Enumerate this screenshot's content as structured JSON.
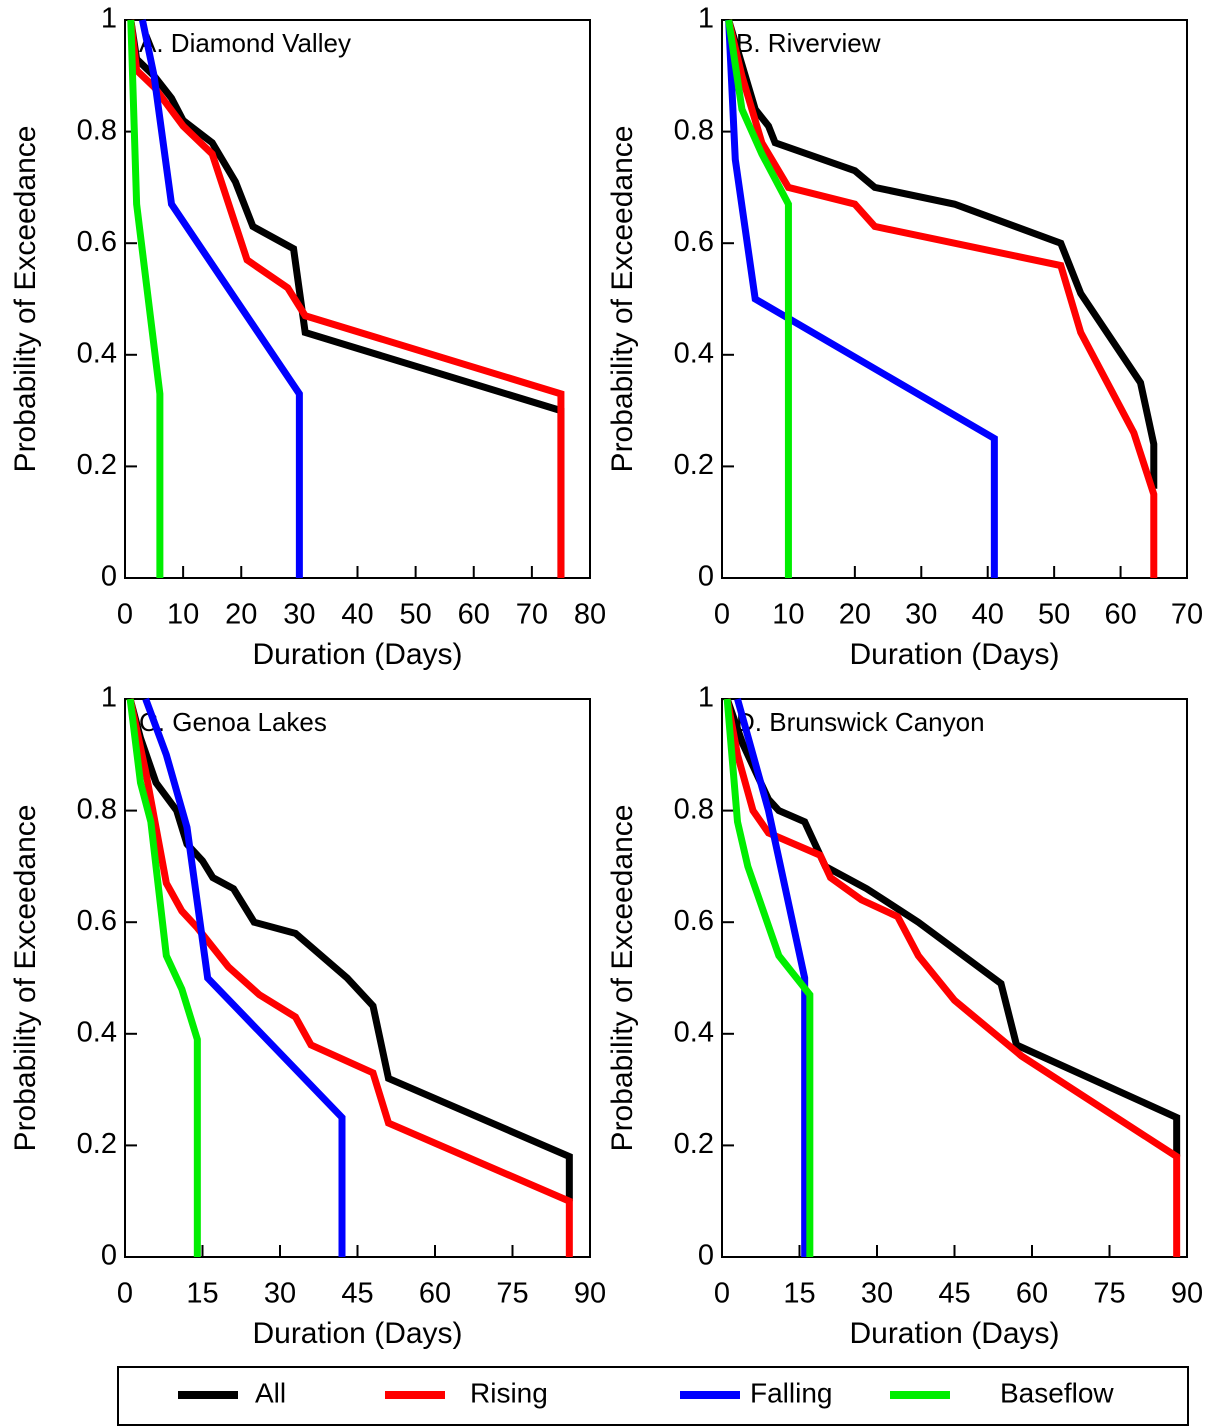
{
  "chart_data": [
    {
      "type": "line",
      "title": "A. Diamond Valley",
      "x_label": "Duration (Days)",
      "y_label": "Probability of Exceedance",
      "xlim": [
        0,
        80
      ],
      "xticks": [
        0,
        10,
        20,
        30,
        40,
        50,
        60,
        70,
        80
      ],
      "ylim": [
        0,
        1
      ],
      "yticks": [
        0,
        0.2,
        0.4,
        0.6,
        0.8,
        1
      ],
      "series": [
        {
          "name": "All",
          "color": "#000000",
          "x": [
            1,
            2,
            5,
            8,
            10,
            15,
            19,
            22,
            29,
            31,
            75,
            75
          ],
          "values": [
            1,
            0.93,
            0.9,
            0.86,
            0.82,
            0.78,
            0.71,
            0.63,
            0.59,
            0.44,
            0.3,
            0
          ]
        },
        {
          "name": "Rising",
          "color": "#ff0000",
          "x": [
            1,
            2,
            5,
            10,
            15,
            21,
            28,
            31,
            75,
            75
          ],
          "values": [
            1,
            0.91,
            0.88,
            0.81,
            0.76,
            0.57,
            0.52,
            0.47,
            0.33,
            0
          ]
        },
        {
          "name": "Falling",
          "color": "#0000ff",
          "x": [
            3,
            5,
            8,
            30,
            30
          ],
          "values": [
            1,
            0.9,
            0.67,
            0.33,
            0
          ]
        },
        {
          "name": "Baseflow",
          "color": "#00ee00",
          "x": [
            1,
            2,
            6,
            6
          ],
          "values": [
            1,
            0.67,
            0.33,
            0
          ]
        }
      ]
    },
    {
      "type": "line",
      "title": "B. Riverview",
      "x_label": "Duration (Days)",
      "y_label": "Probability of Exceedance",
      "xlim": [
        0,
        70
      ],
      "xticks": [
        0,
        10,
        20,
        30,
        40,
        50,
        60,
        70
      ],
      "ylim": [
        0,
        1
      ],
      "yticks": [
        0,
        0.2,
        0.4,
        0.6,
        0.8,
        1
      ],
      "series": [
        {
          "name": "All",
          "color": "#000000",
          "x": [
            1,
            3,
            5,
            7,
            8,
            20,
            23,
            35,
            51,
            54,
            63,
            65,
            65
          ],
          "values": [
            1,
            0.92,
            0.84,
            0.81,
            0.78,
            0.73,
            0.7,
            0.67,
            0.6,
            0.51,
            0.35,
            0.24,
            0.16
          ]
        },
        {
          "name": "Rising",
          "color": "#ff0000",
          "x": [
            1,
            3,
            6,
            8,
            10,
            20,
            23,
            51,
            54,
            62,
            65,
            65
          ],
          "values": [
            1,
            0.9,
            0.78,
            0.74,
            0.7,
            0.67,
            0.63,
            0.56,
            0.44,
            0.26,
            0.15,
            0
          ]
        },
        {
          "name": "Falling",
          "color": "#0000ff",
          "x": [
            1,
            2,
            5,
            41,
            41
          ],
          "values": [
            1,
            0.75,
            0.5,
            0.25,
            0
          ]
        },
        {
          "name": "Baseflow",
          "color": "#00ee00",
          "x": [
            1,
            3,
            6,
            10,
            10
          ],
          "values": [
            1,
            0.84,
            0.76,
            0.67,
            0
          ]
        }
      ]
    },
    {
      "type": "line",
      "title": "C. Genoa Lakes",
      "x_label": "Duration (Days)",
      "y_label": "Probability of Exceedance",
      "xlim": [
        0,
        90
      ],
      "xticks": [
        0,
        15,
        30,
        45,
        60,
        75,
        90
      ],
      "ylim": [
        0,
        1
      ],
      "yticks": [
        0,
        0.2,
        0.4,
        0.6,
        0.8,
        1
      ],
      "series": [
        {
          "name": "All",
          "color": "#000000",
          "x": [
            1,
            3,
            6,
            10,
            12,
            15,
            17,
            21,
            25,
            33,
            43,
            48,
            51,
            86,
            86
          ],
          "values": [
            1,
            0.93,
            0.85,
            0.8,
            0.74,
            0.71,
            0.68,
            0.66,
            0.6,
            0.58,
            0.5,
            0.45,
            0.32,
            0.18,
            0.1
          ]
        },
        {
          "name": "Rising",
          "color": "#ff0000",
          "x": [
            1,
            4,
            8,
            11,
            14,
            20,
            26,
            33,
            36,
            48,
            51,
            86,
            86
          ],
          "values": [
            1,
            0.87,
            0.67,
            0.62,
            0.59,
            0.52,
            0.47,
            0.43,
            0.38,
            0.33,
            0.24,
            0.1,
            0
          ]
        },
        {
          "name": "Falling",
          "color": "#0000ff",
          "x": [
            4,
            8,
            12,
            16,
            42,
            42
          ],
          "values": [
            1,
            0.9,
            0.77,
            0.5,
            0.25,
            0
          ]
        },
        {
          "name": "Baseflow",
          "color": "#00ee00",
          "x": [
            1,
            3,
            5,
            8,
            11,
            14,
            14
          ],
          "values": [
            1,
            0.85,
            0.78,
            0.54,
            0.48,
            0.39,
            0
          ]
        }
      ]
    },
    {
      "type": "line",
      "title": "D. Brunswick Canyon",
      "x_label": "Duration (Days)",
      "y_label": "Probability of Exceedance",
      "xlim": [
        0,
        90
      ],
      "xticks": [
        0,
        15,
        30,
        45,
        60,
        75,
        90
      ],
      "ylim": [
        0,
        1
      ],
      "yticks": [
        0,
        0.2,
        0.4,
        0.6,
        0.8,
        1
      ],
      "series": [
        {
          "name": "All",
          "color": "#000000",
          "x": [
            1,
            4,
            9,
            11,
            16,
            18,
            20,
            28,
            38,
            54,
            57,
            88,
            88
          ],
          "values": [
            1,
            0.92,
            0.82,
            0.8,
            0.78,
            0.74,
            0.7,
            0.66,
            0.6,
            0.49,
            0.38,
            0.25,
            0.18
          ]
        },
        {
          "name": "Rising",
          "color": "#ff0000",
          "x": [
            1,
            3,
            6,
            9,
            19,
            21,
            27,
            34,
            38,
            45,
            58,
            88,
            88
          ],
          "values": [
            1,
            0.9,
            0.8,
            0.76,
            0.72,
            0.68,
            0.64,
            0.61,
            0.54,
            0.46,
            0.36,
            0.18,
            0
          ]
        },
        {
          "name": "Falling",
          "color": "#0000ff",
          "x": [
            3,
            9,
            16,
            16
          ],
          "values": [
            1,
            0.8,
            0.5,
            0
          ]
        },
        {
          "name": "Baseflow",
          "color": "#00ee00",
          "x": [
            1,
            3,
            5,
            11,
            17,
            17
          ],
          "values": [
            1,
            0.78,
            0.7,
            0.54,
            0.47,
            0
          ]
        }
      ]
    }
  ]
}
